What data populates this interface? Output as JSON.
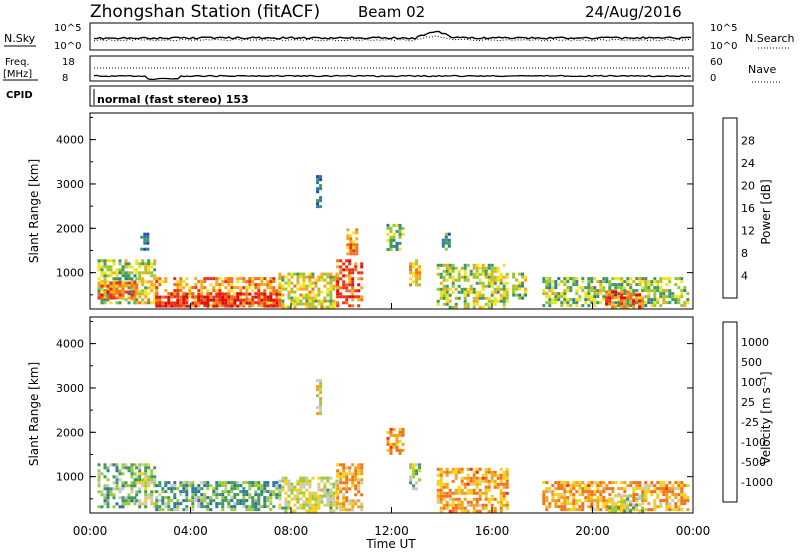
{
  "header": {
    "station": "Zhongshan Station (fitACF)",
    "beam": "Beam 02",
    "date": "24/Aug/2016"
  },
  "top_panels": {
    "nsky_label": "N.Sky",
    "nsearch_label": "N.Search",
    "freq_label_line1": "Freq.",
    "freq_label_line2": "[MHz]",
    "nave_label": "Nave",
    "cpid_label": "CPID",
    "cpid_text": "normal (fast stereo) 153",
    "nsky_tick_top": "10^5",
    "nsky_tick_bottom": "10^0",
    "freq_tick_top": "18",
    "freq_tick_bottom": "8",
    "nave_tick_top": "60",
    "nave_tick_bottom": "0",
    "legend_line_style": "dotted"
  },
  "chart_data": [
    {
      "type": "heatmap",
      "title": "",
      "xlabel": "",
      "ylabel": "Slant Range [km]",
      "x_domain_hours": [
        0,
        24
      ],
      "ylim": [
        180,
        4600
      ],
      "yticks": [
        1000,
        2000,
        3000,
        4000
      ],
      "colorbar": {
        "label": "Power [dB]",
        "ticks": [
          "4",
          "8",
          "12",
          "16",
          "20",
          "24",
          "28"
        ],
        "colors": [
          "#0b18f5",
          "#2346b8",
          "#2f7b9a",
          "#3d9a60",
          "#97c832",
          "#f2e31d",
          "#f6a91e",
          "#f3711a",
          "#ee2f19",
          "#e00b0b"
        ]
      },
      "regions": [
        {
          "t0": 0.3,
          "t1": 1.8,
          "r0": 300,
          "r1": 1300,
          "level": 0.45
        },
        {
          "t0": 0.3,
          "t1": 1.8,
          "r0": 400,
          "r1": 800,
          "level": 0.75
        },
        {
          "t0": 1.8,
          "t1": 2.6,
          "r0": 350,
          "r1": 1300,
          "level": 0.55
        },
        {
          "t0": 2.0,
          "t1": 2.3,
          "r0": 1500,
          "r1": 1900,
          "level": 0.3
        },
        {
          "t0": 2.6,
          "t1": 7.5,
          "r0": 250,
          "r1": 900,
          "level": 0.7
        },
        {
          "t0": 2.6,
          "t1": 7.5,
          "r0": 250,
          "r1": 550,
          "level": 0.9
        },
        {
          "t0": 7.5,
          "t1": 9.8,
          "r0": 250,
          "r1": 1000,
          "level": 0.55
        },
        {
          "t0": 9.0,
          "t1": 9.2,
          "r0": 2400,
          "r1": 3200,
          "level": 0.25
        },
        {
          "t0": 9.8,
          "t1": 10.8,
          "r0": 250,
          "r1": 1300,
          "level": 0.8
        },
        {
          "t0": 10.2,
          "t1": 10.6,
          "r0": 1400,
          "r1": 2000,
          "level": 0.65
        },
        {
          "t0": 11.8,
          "t1": 12.5,
          "r0": 1500,
          "r1": 2100,
          "level": 0.4
        },
        {
          "t0": 12.7,
          "t1": 13.1,
          "r0": 700,
          "r1": 1300,
          "level": 0.6
        },
        {
          "t0": 13.8,
          "t1": 16.6,
          "r0": 250,
          "r1": 1200,
          "level": 0.5
        },
        {
          "t0": 14.0,
          "t1": 14.3,
          "r0": 1500,
          "r1": 1900,
          "level": 0.3
        },
        {
          "t0": 16.8,
          "t1": 17.3,
          "r0": 400,
          "r1": 1000,
          "level": 0.45
        },
        {
          "t0": 18.0,
          "t1": 23.8,
          "r0": 250,
          "r1": 900,
          "level": 0.45
        },
        {
          "t0": 20.5,
          "t1": 22.0,
          "r0": 250,
          "r1": 600,
          "level": 0.8
        }
      ]
    },
    {
      "type": "heatmap",
      "title": "",
      "xlabel": "Time UT",
      "ylabel": "Slant Range [km]",
      "x_domain_hours": [
        0,
        24
      ],
      "ylim": [
        180,
        4600
      ],
      "yticks": [
        1000,
        2000,
        3000,
        4000
      ],
      "xticks": [
        "00:00",
        "04:00",
        "08:00",
        "12:00",
        "16:00",
        "20:00",
        "00:00"
      ],
      "colorbar": {
        "label": "Velocity [m s⁻¹]",
        "ticks": [
          "1000",
          "500",
          "100",
          "25",
          "-25",
          "-100",
          "-500",
          "-1000"
        ],
        "colors": [
          "#1f3fb8",
          "#2f74a8",
          "#3f9a62",
          "#9acc3a",
          "#c8c8c8",
          "#f5d018",
          "#f3a11a",
          "#f3711a",
          "#ee2f19"
        ]
      },
      "regions": [
        {
          "t0": 0.3,
          "t1": 1.8,
          "r0": 300,
          "r1": 1300,
          "level": 0.35
        },
        {
          "t0": 1.8,
          "t1": 2.6,
          "r0": 350,
          "r1": 1300,
          "level": 0.45
        },
        {
          "t0": 2.6,
          "t1": 7.5,
          "r0": 250,
          "r1": 900,
          "level": 0.3
        },
        {
          "t0": 7.5,
          "t1": 9.8,
          "r0": 250,
          "r1": 1000,
          "level": 0.5
        },
        {
          "t0": 9.0,
          "t1": 9.2,
          "r0": 2400,
          "r1": 3200,
          "level": 0.55
        },
        {
          "t0": 9.8,
          "t1": 10.8,
          "r0": 250,
          "r1": 1300,
          "level": 0.7
        },
        {
          "t0": 11.8,
          "t1": 12.5,
          "r0": 1500,
          "r1": 2100,
          "level": 0.75
        },
        {
          "t0": 12.7,
          "t1": 13.1,
          "r0": 700,
          "r1": 1300,
          "level": 0.4
        },
        {
          "t0": 13.8,
          "t1": 16.6,
          "r0": 250,
          "r1": 1200,
          "level": 0.72
        },
        {
          "t0": 18.0,
          "t1": 23.8,
          "r0": 250,
          "r1": 900,
          "level": 0.72
        },
        {
          "t0": 20.5,
          "t1": 22.0,
          "r0": 250,
          "r1": 600,
          "level": 0.45
        }
      ]
    }
  ]
}
